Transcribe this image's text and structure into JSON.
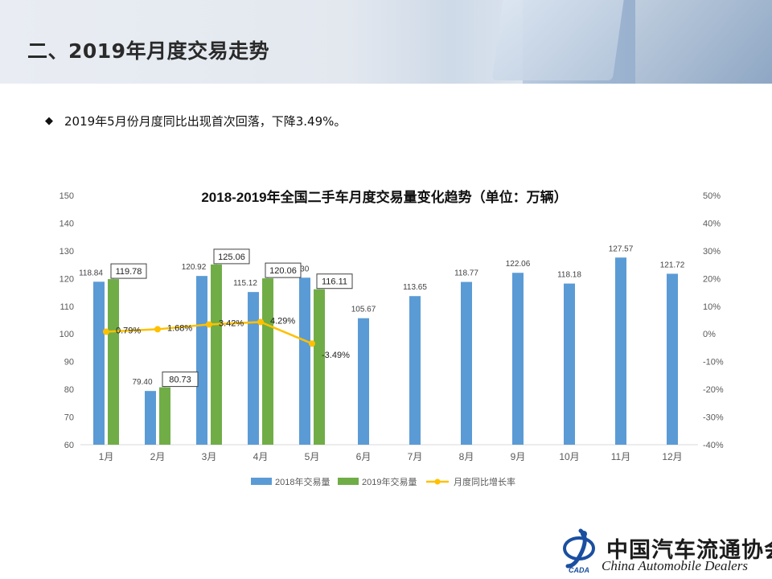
{
  "page": {
    "title": "二、2019年月度交易走势",
    "bullet": "2019年5月份月度同比出现首次回落，下降3.49%。"
  },
  "logo": {
    "cn": "中国汽车流通协会",
    "en": "China Automobile Dealers",
    "mark_text": "CADA"
  },
  "colors": {
    "series_2018": "#5b9bd5",
    "series_2019": "#70ad47",
    "growth_line": "#ffc000"
  },
  "chart_data": {
    "type": "bar",
    "title": "2018-2019年全国二手车月度交易量变化趋势（单位：万辆）",
    "categories": [
      "1月",
      "2月",
      "3月",
      "4月",
      "5月",
      "6月",
      "7月",
      "8月",
      "9月",
      "10月",
      "11月",
      "12月"
    ],
    "series": [
      {
        "name": "2018年交易量",
        "type": "bar",
        "axis": "left",
        "values": [
          118.84,
          79.4,
          120.92,
          115.12,
          120.3,
          105.67,
          113.65,
          118.77,
          122.06,
          118.18,
          127.57,
          121.72
        ]
      },
      {
        "name": "2019年交易量",
        "type": "bar",
        "axis": "left",
        "values": [
          119.78,
          80.73,
          125.06,
          120.06,
          116.11,
          null,
          null,
          null,
          null,
          null,
          null,
          null
        ]
      },
      {
        "name": "月度同比增长率",
        "type": "line",
        "axis": "right",
        "values": [
          0.79,
          1.68,
          3.42,
          4.29,
          -3.49,
          null,
          null,
          null,
          null,
          null,
          null,
          null
        ]
      }
    ],
    "data_labels_2018": [
      "118.84",
      "79.40",
      "120.92",
      "115.12",
      "120.30",
      "105.67",
      "113.65",
      "118.77",
      "122.06",
      "118.18",
      "127.57",
      "121.72"
    ],
    "data_labels_2019": [
      "119.78",
      "80.73",
      "125.06",
      "120.06",
      "116.11"
    ],
    "data_labels_growth": [
      "0.79%",
      "1.68%",
      "3.42%",
      "4.29%",
      "-3.49%"
    ],
    "ylim_left": [
      60,
      150
    ],
    "yticks_left": [
      "60",
      "70",
      "80",
      "90",
      "100",
      "110",
      "120",
      "130",
      "140",
      "150"
    ],
    "ylim_right": [
      -40,
      50
    ],
    "yticks_right": [
      "-40%",
      "-30%",
      "-20%",
      "-10%",
      "0%",
      "10%",
      "20%",
      "30%",
      "40%",
      "50%"
    ],
    "legend_position": "bottom",
    "grid": false
  }
}
